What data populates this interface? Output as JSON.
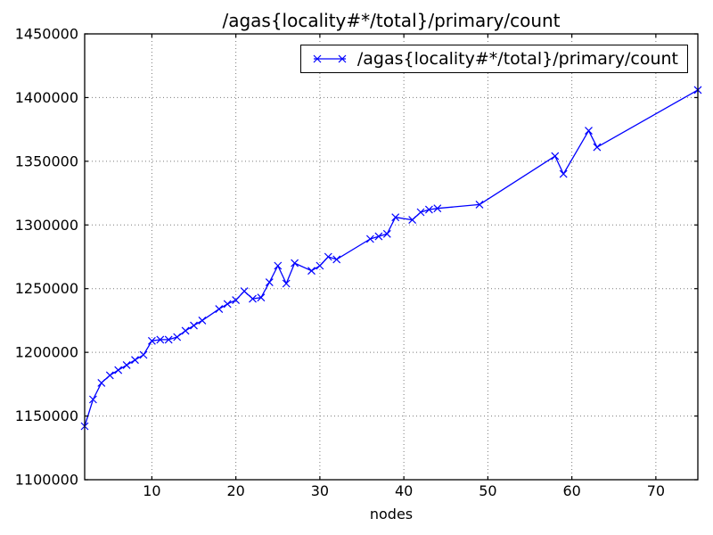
{
  "chart_data": {
    "type": "line",
    "title": "/agas{locality#*/total}/primary/count",
    "xlabel": "nodes",
    "ylabel": "",
    "grid": true,
    "legend": [
      "/agas{locality#*/total}/primary/count"
    ],
    "legend_position": "upper right",
    "line_color": "#0000ff",
    "marker": "x",
    "xlim": [
      2,
      75
    ],
    "ylim": [
      1100000,
      1450000
    ],
    "x_ticks": [
      10,
      20,
      30,
      40,
      50,
      60,
      70
    ],
    "y_ticks": [
      1100000,
      1150000,
      1200000,
      1250000,
      1300000,
      1350000,
      1400000,
      1450000
    ],
    "series": [
      {
        "name": "/agas{locality#*/total}/primary/count",
        "points": [
          [
            2,
            1142000
          ],
          [
            3,
            1163000
          ],
          [
            4,
            1176000
          ],
          [
            5,
            1182000
          ],
          [
            6,
            1186000
          ],
          [
            7,
            1190000
          ],
          [
            8,
            1194000
          ],
          [
            9,
            1198000
          ],
          [
            10,
            1209000
          ],
          [
            11,
            1210000
          ],
          [
            12,
            1210000
          ],
          [
            13,
            1212000
          ],
          [
            14,
            1217000
          ],
          [
            15,
            1221000
          ],
          [
            16,
            1225000
          ],
          [
            18,
            1234000
          ],
          [
            19,
            1238000
          ],
          [
            20,
            1241000
          ],
          [
            21,
            1248000
          ],
          [
            22,
            1242000
          ],
          [
            23,
            1243000
          ],
          [
            24,
            1255000
          ],
          [
            25,
            1268000
          ],
          [
            26,
            1254000
          ],
          [
            27,
            1270000
          ],
          [
            29,
            1264000
          ],
          [
            30,
            1268000
          ],
          [
            31,
            1275000
          ],
          [
            32,
            1273000
          ],
          [
            36,
            1289000
          ],
          [
            37,
            1291000
          ],
          [
            38,
            1293000
          ],
          [
            39,
            1306000
          ],
          [
            41,
            1304000
          ],
          [
            42,
            1310000
          ],
          [
            43,
            1312000
          ],
          [
            44,
            1313000
          ],
          [
            49,
            1316000
          ],
          [
            58,
            1354000
          ],
          [
            59,
            1340000
          ],
          [
            62,
            1374000
          ],
          [
            63,
            1361000
          ],
          [
            75,
            1406000
          ]
        ]
      }
    ]
  }
}
